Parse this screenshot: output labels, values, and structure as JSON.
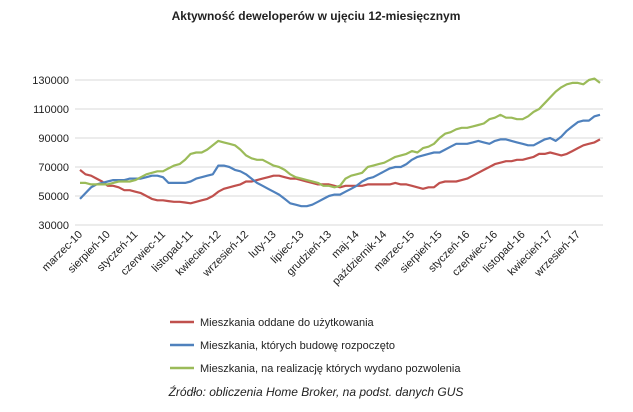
{
  "chart_data": {
    "type": "line",
    "title": "Aktywność deweloperów w ujęciu 12-miesięcznym",
    "source": "Źródło: obliczenia Home Broker, na podst. danych GUS",
    "categories": [
      "marzec-10",
      null,
      null,
      null,
      null,
      "sierpień-10",
      null,
      null,
      null,
      null,
      "styczeń-11",
      null,
      null,
      null,
      null,
      "czerwiec-11",
      null,
      null,
      null,
      null,
      "listopad-11",
      null,
      null,
      null,
      null,
      "kwiecień-12",
      null,
      null,
      null,
      null,
      "wrzesień-12",
      null,
      null,
      null,
      null,
      "luty-13",
      null,
      null,
      null,
      null,
      "lipiec-13",
      null,
      null,
      null,
      null,
      "grudzień-13",
      null,
      null,
      null,
      null,
      "maj-14",
      null,
      null,
      null,
      null,
      "październik-14",
      null,
      null,
      null,
      null,
      "marzec-15",
      null,
      null,
      null,
      null,
      "sierpień-15",
      null,
      null,
      null,
      null,
      "styczeń-16",
      null,
      null,
      null,
      null,
      "czerwiec-16",
      null,
      null,
      null,
      null,
      "listopad-16",
      null,
      null,
      null,
      null,
      "kwiecień-17",
      null,
      null,
      null,
      null,
      "wrzesień-17",
      null,
      null,
      null,
      null
    ],
    "series": [
      {
        "name": "Mieszkania oddane do użytkowania",
        "color": "#c0504d",
        "values": [
          68000,
          65000,
          64000,
          62000,
          60000,
          57000,
          57000,
          56000,
          54000,
          54000,
          53000,
          52000,
          50000,
          48000,
          47000,
          47000,
          46500,
          46000,
          46000,
          45500,
          45000,
          46000,
          47000,
          48000,
          50000,
          53000,
          55000,
          56000,
          57000,
          58000,
          60000,
          60000,
          61000,
          62000,
          63000,
          64000,
          64000,
          63000,
          62000,
          62000,
          61000,
          60000,
          59000,
          58000,
          58000,
          58000,
          57000,
          56000,
          57000,
          57000,
          57000,
          57000,
          58000,
          58000,
          58000,
          58000,
          58000,
          59000,
          58000,
          58000,
          57000,
          56000,
          55000,
          56000,
          56000,
          59000,
          60000,
          60000,
          60000,
          61000,
          62000,
          64000,
          66000,
          68000,
          70000,
          72000,
          73000,
          74000,
          74000,
          75000,
          75000,
          76000,
          77000,
          79000,
          79000,
          80000,
          79000,
          78000,
          79000,
          81000,
          83000,
          85000,
          86000,
          87000,
          89000
        ]
      },
      {
        "name": "Mieszkania, których budowę rozpoczęto",
        "color": "#4f81bd",
        "values": [
          48000,
          52000,
          56000,
          58000,
          59000,
          60000,
          61000,
          61000,
          61000,
          62000,
          62000,
          62000,
          63000,
          64000,
          64000,
          63000,
          59000,
          59000,
          59000,
          59000,
          60000,
          62000,
          63000,
          64000,
          65000,
          71000,
          71000,
          70000,
          68000,
          67000,
          65000,
          62000,
          59000,
          57000,
          55000,
          53000,
          51000,
          48000,
          45000,
          44000,
          43000,
          43000,
          44000,
          46000,
          48000,
          50000,
          51000,
          51000,
          53000,
          55000,
          57000,
          60000,
          62000,
          63000,
          65000,
          67000,
          69000,
          70000,
          70000,
          72000,
          75000,
          77000,
          78000,
          79000,
          80000,
          80000,
          82000,
          84000,
          86000,
          86000,
          86000,
          87000,
          88000,
          87000,
          86000,
          88000,
          89000,
          89000,
          88000,
          87000,
          86000,
          85000,
          85000,
          87000,
          89000,
          90000,
          88000,
          91000,
          95000,
          98000,
          101000,
          102000,
          102000,
          105000,
          106000
        ]
      },
      {
        "name": "Mieszkania, na realizację których wydano pozwolenia",
        "color": "#9bbb59",
        "values": [
          59000,
          59000,
          58000,
          58000,
          58000,
          58000,
          59000,
          60000,
          60000,
          60000,
          61000,
          63000,
          65000,
          66000,
          67000,
          67000,
          69000,
          71000,
          72000,
          75000,
          79000,
          80000,
          80000,
          82000,
          85000,
          88000,
          87000,
          86000,
          85000,
          82000,
          78000,
          76000,
          75000,
          75000,
          73000,
          71000,
          70000,
          68000,
          65000,
          63000,
          62000,
          61000,
          60000,
          59000,
          57000,
          57000,
          56000,
          57000,
          62000,
          64000,
          65000,
          66000,
          70000,
          71000,
          72000,
          73000,
          75000,
          77000,
          78000,
          79000,
          81000,
          80000,
          83000,
          84000,
          86000,
          90000,
          93000,
          94000,
          96000,
          97000,
          97000,
          98000,
          99000,
          100000,
          103000,
          104000,
          106000,
          104000,
          104000,
          103000,
          103000,
          105000,
          108000,
          110000,
          114000,
          118000,
          122000,
          125000,
          127000,
          128000,
          128000,
          127000,
          130000,
          131000,
          128000
        ]
      }
    ],
    "ylim": [
      30000,
      130000
    ],
    "yticks": [
      30000,
      50000,
      70000,
      90000,
      110000,
      130000
    ],
    "grid": true
  }
}
